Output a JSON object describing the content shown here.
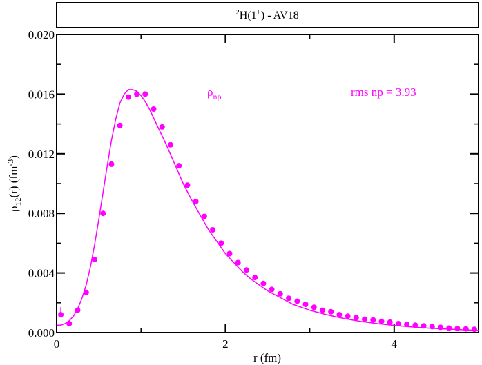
{
  "chart_data": {
    "type": "line",
    "title": {
      "sup1": "2",
      "main1": "H(1",
      "sup2": "+",
      "main2": ") - AV18"
    },
    "xlabel": "r (fm)",
    "ylabel": {
      "part1": "ρ",
      "sub": "12",
      "part2": "(r) (fm",
      "sup": "-3",
      "part3": ")"
    },
    "xlim": [
      0,
      5
    ],
    "ylim": [
      0,
      0.02
    ],
    "x_ticks": [
      {
        "value": 0,
        "label": "0"
      },
      {
        "value": 2,
        "label": "2"
      },
      {
        "value": 4,
        "label": "4"
      }
    ],
    "y_ticks": [
      {
        "value": 0.0,
        "label": "0.000"
      },
      {
        "value": 0.004,
        "label": "0.004"
      },
      {
        "value": 0.008,
        "label": "0.008"
      },
      {
        "value": 0.012,
        "label": "0.012"
      },
      {
        "value": 0.016,
        "label": "0.016"
      },
      {
        "value": 0.02,
        "label": "0.020"
      }
    ],
    "grid": false,
    "color": "#ff00ff",
    "annotations": {
      "series_label_main": "ρ",
      "series_label_sub": "np",
      "rms_text": "rms np = 3.93"
    },
    "series": [
      {
        "kind": "curve",
        "x": [
          0.0,
          0.05,
          0.1,
          0.15,
          0.2,
          0.25,
          0.3,
          0.35,
          0.4,
          0.45,
          0.5,
          0.55,
          0.6,
          0.65,
          0.7,
          0.75,
          0.8,
          0.85,
          0.9,
          0.95,
          1.0,
          1.05,
          1.1,
          1.15,
          1.2,
          1.3,
          1.4,
          1.5,
          1.6,
          1.7,
          1.8,
          1.9,
          2.0,
          2.1,
          2.2,
          2.3,
          2.4,
          2.5,
          2.6,
          2.7,
          2.8,
          2.9,
          3.0,
          3.2,
          3.4,
          3.6,
          3.8,
          4.0,
          4.2,
          4.4,
          4.6,
          4.8,
          5.0
        ],
        "values": [
          0.0005,
          0.0005,
          0.0006,
          0.0008,
          0.0011,
          0.0016,
          0.0023,
          0.0032,
          0.0044,
          0.0059,
          0.0076,
          0.0094,
          0.0112,
          0.0129,
          0.0143,
          0.0154,
          0.016,
          0.0163,
          0.0163,
          0.0162,
          0.0159,
          0.0155,
          0.015,
          0.0144,
          0.0138,
          0.0126,
          0.0113,
          0.01,
          0.0089,
          0.0079,
          0.0069,
          0.0061,
          0.0053,
          0.0047,
          0.0041,
          0.0036,
          0.0032,
          0.0028,
          0.0025,
          0.0022,
          0.0019,
          0.0017,
          0.0015,
          0.0012,
          0.00095,
          0.00075,
          0.0006,
          0.00048,
          0.00038,
          0.0003,
          0.00024,
          0.00019,
          0.00015
        ]
      },
      {
        "kind": "points",
        "x": [
          0.05,
          0.15,
          0.25,
          0.35,
          0.45,
          0.55,
          0.65,
          0.75,
          0.85,
          0.95,
          1.05,
          1.15,
          1.25,
          1.35,
          1.45,
          1.55,
          1.65,
          1.75,
          1.85,
          1.95,
          2.05,
          2.15,
          2.25,
          2.35,
          2.45,
          2.55,
          2.65,
          2.75,
          2.85,
          2.95,
          3.05,
          3.15,
          3.25,
          3.35,
          3.45,
          3.55,
          3.65,
          3.75,
          3.85,
          3.95,
          4.05,
          4.15,
          4.25,
          4.35,
          4.45,
          4.55,
          4.65,
          4.75,
          4.85,
          4.95
        ],
        "values": [
          0.0012,
          0.0006,
          0.0015,
          0.0027,
          0.0049,
          0.008,
          0.0113,
          0.0139,
          0.0158,
          0.016,
          0.016,
          0.015,
          0.0138,
          0.0126,
          0.0112,
          0.0099,
          0.0088,
          0.0078,
          0.0069,
          0.006,
          0.0053,
          0.0047,
          0.0042,
          0.0037,
          0.0033,
          0.0029,
          0.0026,
          0.0023,
          0.0021,
          0.0019,
          0.0017,
          0.0015,
          0.0014,
          0.0012,
          0.0011,
          0.001,
          0.0009,
          0.00085,
          0.00075,
          0.0007,
          0.0006,
          0.00055,
          0.0005,
          0.00045,
          0.0004,
          0.00035,
          0.0003,
          0.00028,
          0.00025,
          0.00022
        ]
      }
    ]
  }
}
